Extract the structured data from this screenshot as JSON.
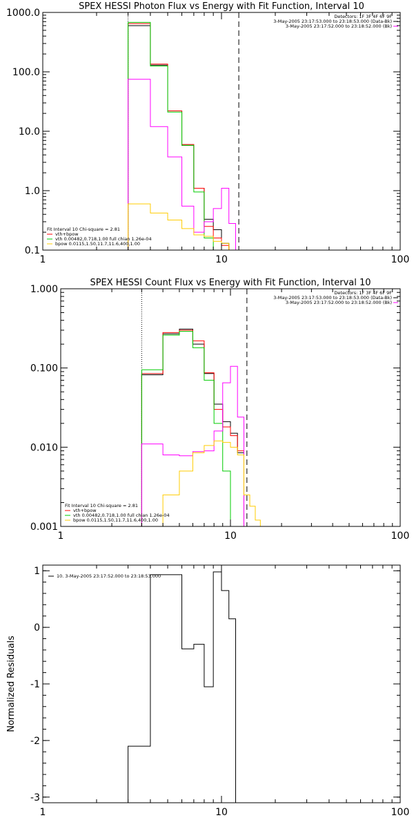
{
  "colors": {
    "data": "#000000",
    "total_fit": "#ff0000",
    "vth": "#00cc00",
    "bpow": "#ffcc00",
    "background": "#ff00ff",
    "axis": "#000000"
  },
  "chart_data": [
    {
      "type": "line",
      "title": "SPEX HESSI Photon Flux vs Energy with Fit Function, Interval 10",
      "xlog": true,
      "ylog": true,
      "xlim": [
        1,
        100
      ],
      "ylim": [
        0.1,
        1000
      ],
      "x_ticks": [
        "1",
        "10",
        "100"
      ],
      "y_ticks": [
        "0.1",
        "1.0",
        "10.0",
        "100.0",
        "1000.0"
      ],
      "vlines": [
        {
          "x": 3,
          "style": "dotted"
        },
        {
          "x": 12.5,
          "style": "dashed"
        }
      ],
      "bin_edges": [
        3,
        4,
        5,
        6,
        7,
        8,
        9,
        10,
        11,
        12
      ],
      "series": [
        {
          "key": "data",
          "values": [
            600,
            130,
            22,
            5.8,
            1.1,
            0.33,
            0.22,
            0.13,
            0.1
          ]
        },
        {
          "key": "total_fit",
          "values": [
            650,
            135,
            22,
            6.0,
            1.1,
            0.25,
            0.16,
            0.12,
            0.1
          ]
        },
        {
          "key": "vth",
          "values": [
            680,
            125,
            21,
            5.8,
            0.95,
            0.16,
            null,
            null,
            null
          ]
        },
        {
          "key": "background",
          "values": [
            75,
            12,
            3.7,
            0.55,
            0.2,
            0.3,
            0.5,
            1.1,
            0.28
          ]
        },
        {
          "key": "bpow",
          "values": [
            0.6,
            0.42,
            0.32,
            0.23,
            0.18,
            0.17,
            0.14,
            0.13,
            0.1
          ]
        }
      ],
      "legend_top": [
        {
          "text": "Detectors: 1F 3F 4F 6F 9F",
          "key": null
        },
        {
          "text": "3-May-2005 23:17:53.000 to 23:18:53.000 (Data-Bk)",
          "key": "data"
        },
        {
          "text": "3-May-2005 23:17:52.000 to 23:18:52.000 (Bk)",
          "key": "background"
        }
      ],
      "legend_bottom": [
        {
          "text": "Fit Interval 10   Chi-square = 2.81",
          "key": null
        },
        {
          "text": "vth+bpow",
          "key": "total_fit"
        },
        {
          "text": "vth 0.00482,0.718,1.00   full chian 1.26e-04",
          "key": "vth"
        },
        {
          "text": "bpow 0.0115,1.50,11.7,11.6,400,1.00",
          "key": "bpow"
        }
      ]
    },
    {
      "type": "line",
      "title": "SPEX HESSI Count Flux vs Energy with Fit Function, Interval 10",
      "xlog": true,
      "ylog": true,
      "xlim": [
        1,
        100
      ],
      "ylim": [
        0.001,
        1
      ],
      "x_ticks": [
        "1",
        "10",
        "100"
      ],
      "y_ticks": [
        "0.001",
        "0.010",
        "0.100",
        "1.000"
      ],
      "vlines": [
        {
          "x": 3,
          "style": "dotted"
        },
        {
          "x": 12.5,
          "style": "dashed"
        }
      ],
      "bin_edges": [
        3,
        4,
        5,
        6,
        7,
        8,
        9,
        10,
        11,
        12,
        13,
        14,
        15
      ],
      "series": [
        {
          "key": "data",
          "values": [
            0.082,
            0.27,
            0.31,
            0.2,
            0.085,
            0.035,
            0.021,
            0.015,
            0.0085,
            null,
            null,
            null
          ]
        },
        {
          "key": "total_fit",
          "values": [
            0.085,
            0.28,
            0.3,
            0.22,
            0.087,
            0.03,
            0.018,
            0.014,
            0.009,
            null,
            null,
            null
          ]
        },
        {
          "key": "vth",
          "values": [
            0.095,
            0.26,
            0.29,
            0.18,
            0.07,
            0.02,
            0.005,
            0.001,
            null,
            null,
            null,
            null
          ]
        },
        {
          "key": "background",
          "values": [
            0.011,
            0.008,
            0.0078,
            0.0088,
            0.009,
            0.016,
            0.065,
            0.105,
            0.024,
            null,
            null,
            null
          ]
        },
        {
          "key": "bpow",
          "values": [
            null,
            0.0025,
            0.005,
            0.0085,
            0.0105,
            0.012,
            0.0115,
            0.01,
            0.008,
            0.0025,
            0.0018,
            0.0012
          ]
        }
      ],
      "legend_top": [
        {
          "text": "Detectors: 1F 3F 4F 6F 9F",
          "key": null
        },
        {
          "text": "3-May-2005 23:17:53.000 to 23:18:53.000 (Data-Bk)",
          "key": "data"
        },
        {
          "text": "3-May-2005 23:17:52.000 to 23:18:52.000 (Bk)",
          "key": "background"
        }
      ],
      "legend_bottom": [
        {
          "text": "Fit Interval 10   Chi-square = 2.81",
          "key": null
        },
        {
          "text": "vth+bpow",
          "key": "total_fit"
        },
        {
          "text": "vth 0.00482,0.718,1.00   full chian 1.26e-04",
          "key": "vth"
        },
        {
          "text": "bpow 0.0115,1.50,11.7,11.6,400,1.00",
          "key": "bpow"
        }
      ]
    },
    {
      "type": "line",
      "title": "",
      "ylabel": "Normalized Residuals",
      "xlog": true,
      "ylog": false,
      "xlim": [
        1,
        100
      ],
      "ylim": [
        -3.1,
        1.1
      ],
      "x_ticks": [
        "1",
        "10",
        "100"
      ],
      "y_ticks": [
        "-3",
        "-2",
        "-1",
        "0",
        "1"
      ],
      "bin_edges": [
        3,
        4,
        5,
        6,
        7,
        8,
        9,
        10,
        11,
        12
      ],
      "series": [
        {
          "key": "data",
          "values": [
            -2.1,
            0.93,
            0.93,
            -0.38,
            -0.3,
            -1.05,
            0.98,
            0.65,
            0.15
          ]
        }
      ],
      "legend_top": [
        {
          "text": "10.  3-May-2005 23:17:52.000 to 23:18:53.000",
          "key": "data"
        }
      ],
      "legend_bottom": []
    }
  ]
}
